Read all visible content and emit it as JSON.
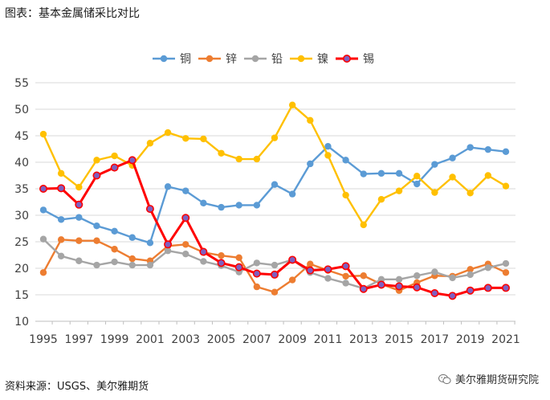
{
  "caption": "图表：基本金属储采比对比",
  "source": "资料来源：USGS、美尔雅期货",
  "watermark": "美尔雅期货研究院",
  "chart_data": {
    "type": "line",
    "title": "",
    "xlabel": "",
    "ylabel": "",
    "ylim": [
      10,
      55
    ],
    "yticks": [
      10,
      15,
      20,
      25,
      30,
      35,
      40,
      45,
      50,
      55
    ],
    "grid": "horizontal",
    "legend_position": "top",
    "x": [
      1995,
      1996,
      1997,
      1998,
      1999,
      2000,
      2001,
      2002,
      2003,
      2004,
      2005,
      2006,
      2007,
      2008,
      2009,
      2010,
      2011,
      2012,
      2013,
      2014,
      2015,
      2016,
      2017,
      2018,
      2019,
      2020,
      2021
    ],
    "xtick_labels": [
      "1995",
      "1997",
      "1999",
      "2001",
      "2003",
      "2005",
      "2007",
      "2009",
      "2011",
      "2013",
      "2015",
      "2017",
      "2019",
      "2021"
    ],
    "series": [
      {
        "name": "铜",
        "color": "#5B9BD5",
        "values": [
          31.0,
          29.2,
          29.6,
          28.0,
          27.0,
          25.8,
          24.8,
          35.4,
          34.6,
          32.3,
          31.5,
          31.9,
          31.9,
          35.8,
          34.0,
          39.7,
          43.0,
          40.4,
          37.8,
          37.9,
          37.9,
          35.9,
          39.6,
          40.8,
          42.8,
          42.4,
          42.0
        ]
      },
      {
        "name": "锌",
        "color": "#ED7D31",
        "values": [
          19.2,
          25.4,
          25.2,
          25.2,
          23.6,
          21.8,
          21.4,
          24.2,
          24.5,
          23.0,
          22.4,
          22.0,
          16.5,
          15.5,
          17.8,
          20.8,
          19.6,
          18.5,
          18.6,
          17.0,
          15.8,
          17.3,
          18.6,
          18.5,
          19.8,
          20.8,
          19.2
        ]
      },
      {
        "name": "铅",
        "color": "#A5A5A5",
        "values": [
          25.5,
          22.3,
          21.4,
          20.6,
          21.2,
          20.6,
          20.6,
          23.3,
          22.7,
          21.3,
          20.5,
          19.3,
          21.0,
          20.6,
          21.6,
          19.2,
          18.1,
          17.2,
          16.2,
          17.9,
          17.9,
          18.6,
          19.3,
          18.2,
          18.8,
          20.1,
          20.9
        ]
      },
      {
        "name": "镍",
        "color": "#FFC000",
        "values": [
          45.3,
          37.9,
          35.3,
          40.4,
          41.2,
          39.4,
          43.6,
          45.6,
          44.5,
          44.4,
          41.7,
          40.6,
          40.6,
          44.6,
          50.8,
          47.9,
          41.3,
          33.8,
          28.2,
          33.0,
          34.6,
          37.4,
          34.3,
          37.2,
          34.2,
          37.5,
          35.5
        ]
      },
      {
        "name": "锡",
        "color": "#FF0000",
        "marker_color": "#7F5FBF",
        "values": [
          35.0,
          35.1,
          32.0,
          37.5,
          39.0,
          40.4,
          31.2,
          24.5,
          29.5,
          23.1,
          21.0,
          20.2,
          19.0,
          18.8,
          21.6,
          19.6,
          19.8,
          20.4,
          16.1,
          16.9,
          16.6,
          16.4,
          15.3,
          14.8,
          15.8,
          16.3,
          16.3
        ]
      }
    ]
  }
}
